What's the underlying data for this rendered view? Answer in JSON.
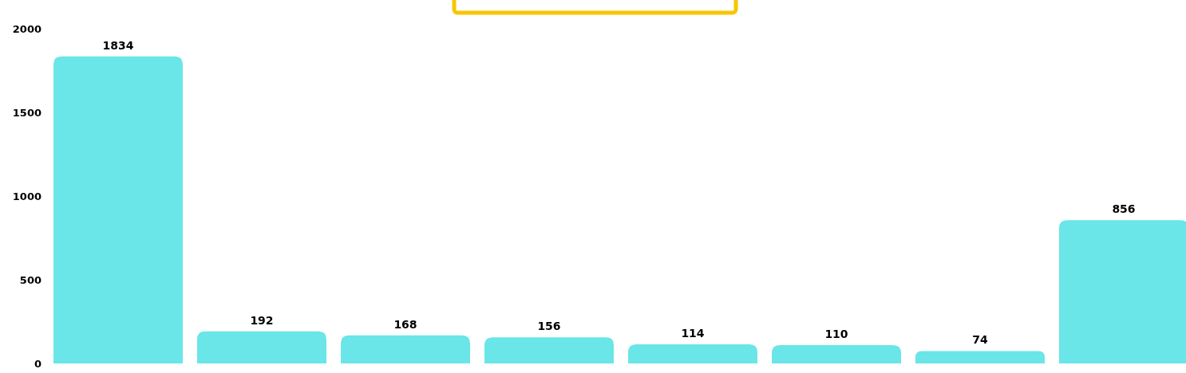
{
  "chart_data": {
    "type": "bar",
    "categories": [
      null,
      null,
      null,
      null,
      null,
      null,
      null,
      null
    ],
    "values": [
      1834,
      192,
      168,
      156,
      114,
      110,
      74,
      856
    ],
    "color": "#6ae5e8",
    "ylim": [
      0,
      2000
    ],
    "yticks": [
      0,
      500,
      1000,
      1500,
      2000
    ],
    "grid": false,
    "data_labels": true
  }
}
